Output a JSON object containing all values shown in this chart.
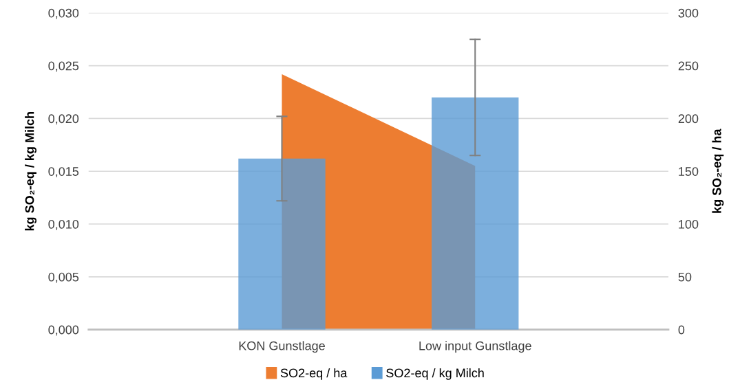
{
  "chart_data": {
    "type": "bar",
    "categories": [
      "KON Gunstlage",
      "Low input Gunstlage"
    ],
    "ylabel": "kg SO₂-eq / kg Milch",
    "y2label": "kg SO₂-eq / ha",
    "series": [
      {
        "name": "SO2-eq / ha",
        "type": "area",
        "axis": "y2",
        "color": "#ed7d31",
        "values": [
          242,
          155
        ]
      },
      {
        "name": "SO2-eq / kg Milch",
        "color": "#5b9bd5",
        "values": [
          0.0162,
          0.022
        ],
        "errors": [
          [
            0.0122,
            0.0202
          ],
          [
            0.0165,
            0.0275
          ]
        ]
      }
    ],
    "ylim": [
      0,
      0.03
    ],
    "yticks": [
      {
        "value": 0,
        "label": "0,000"
      },
      {
        "value": 0.005,
        "label": "0,005"
      },
      {
        "value": 0.01,
        "label": "0,010"
      },
      {
        "value": 0.015,
        "label": "0,015"
      },
      {
        "value": 0.02,
        "label": "0,020"
      },
      {
        "value": 0.025,
        "label": "0,025"
      },
      {
        "value": 0.03,
        "label": "0,030"
      }
    ],
    "y2lim": [
      0,
      300
    ],
    "y2ticks": [
      0,
      50,
      100,
      150,
      200,
      250,
      300
    ],
    "grid": "y",
    "legend": "bottom"
  }
}
